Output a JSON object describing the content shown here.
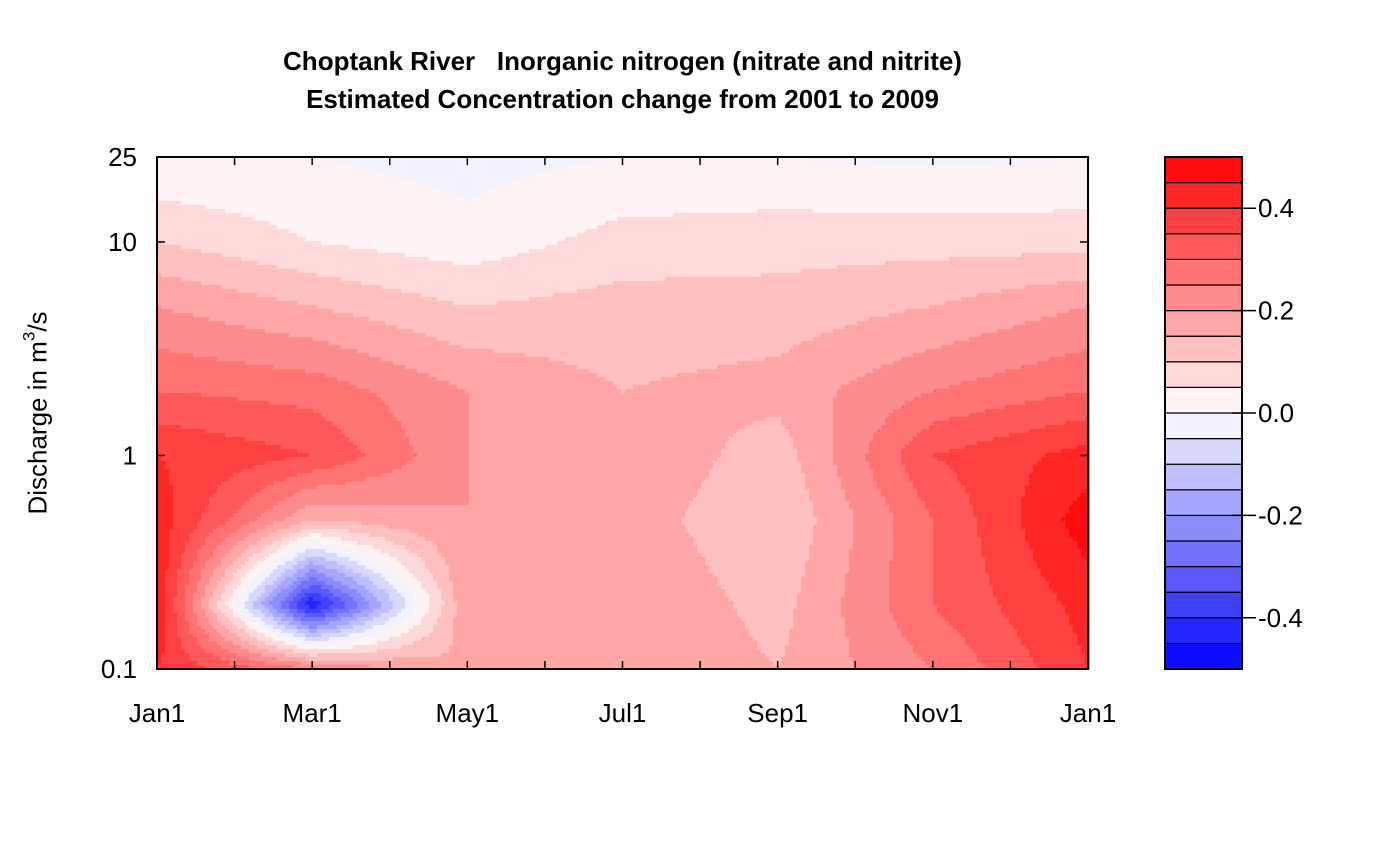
{
  "title_line1": "Choptank River   Inorganic nitrogen (nitrate and nitrite)",
  "title_line2": "Estimated Concentration change from 2001 to 2009",
  "ylabel_prefix": "Discharge in m",
  "ylabel_sup": "3",
  "ylabel_suffix": "/s",
  "colors": {
    "min": "#0000ff",
    "mid": "#ffffff",
    "max": "#ff0000"
  },
  "chart_data": {
    "type": "heatmap",
    "title": "Choptank River   Inorganic nitrogen (nitrate and nitrite)\nEstimated Concentration change from 2001 to 2009",
    "xlabel": "",
    "ylabel": "Discharge in m3/s",
    "x_ticks": [
      "Jan1",
      "Mar1",
      "May1",
      "Jul1",
      "Sep1",
      "Nov1",
      "Jan1"
    ],
    "y_ticks": [
      "0.1",
      "1",
      "10",
      "25"
    ],
    "y_scale": "log",
    "ylim": [
      0.1,
      25
    ],
    "colorbar_ticks": [
      "0.4",
      "0.2",
      "0.0",
      "-0.2",
      "-0.4"
    ],
    "colorbar_range": [
      -0.5,
      0.5
    ],
    "colorbar_levels": 20,
    "grid": false,
    "x_months": [
      0,
      2,
      4,
      6,
      8,
      10,
      12
    ],
    "y_discharge": [
      0.1,
      0.2,
      0.5,
      1,
      2,
      5,
      10,
      25
    ],
    "z": [
      [
        0.4,
        0.25,
        0.15,
        0.2,
        0.15,
        0.25,
        0.4
      ],
      [
        0.45,
        -0.45,
        0.2,
        0.2,
        0.13,
        0.3,
        0.42
      ],
      [
        0.43,
        0.15,
        0.2,
        0.18,
        0.1,
        0.3,
        0.48
      ],
      [
        0.4,
        0.35,
        0.2,
        0.2,
        0.12,
        0.35,
        0.42
      ],
      [
        0.3,
        0.28,
        0.2,
        0.15,
        0.17,
        0.25,
        0.3
      ],
      [
        0.2,
        0.15,
        0.1,
        0.12,
        0.12,
        0.15,
        0.2
      ],
      [
        0.1,
        0.05,
        0.02,
        0.07,
        0.08,
        0.08,
        0.08
      ],
      [
        0.0,
        0.0,
        -0.02,
        0.0,
        0.0,
        -0.01,
        0.0
      ]
    ]
  }
}
